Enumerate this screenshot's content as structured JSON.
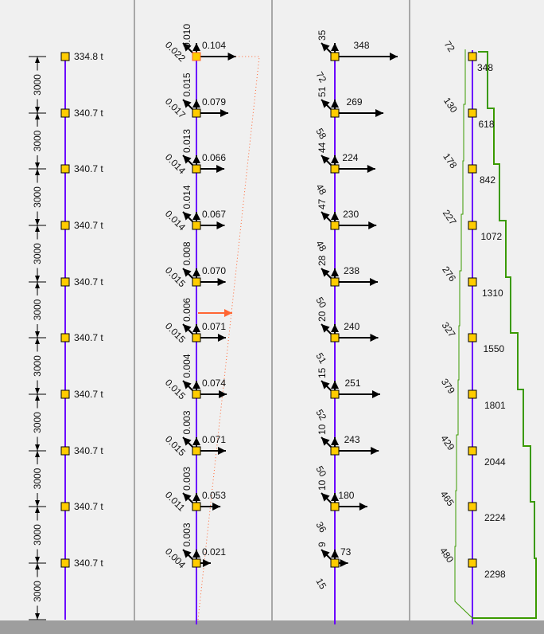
{
  "colors": {
    "column": "#6a00ff",
    "node_fill": "#ffcc00",
    "arrow": "#000000",
    "highlight": "#ff6633",
    "shear_envelope": "#3a9a00",
    "ground": "#9e9e9e",
    "divider": "#a8a8a8"
  },
  "panel_masses": {
    "story_height_labels": [
      "3000",
      "3000",
      "3000",
      "3000",
      "3000",
      "3000",
      "3000",
      "3000",
      "3000",
      "3000"
    ],
    "node_labels": [
      "334.8 t",
      "340.7 t",
      "340.7 t",
      "340.7 t",
      "340.7 t",
      "340.7 t",
      "340.7 t",
      "340.7 t",
      "340.7 t",
      "340.7 t"
    ]
  },
  "panel_displacements": {
    "top_values": [
      "0.104",
      "0.079",
      "0.066",
      "0.067",
      "0.070",
      "0.071",
      "0.074",
      "0.071",
      "0.053",
      "0.021"
    ],
    "diagonal_values": [
      "0.022",
      "0.017",
      "0.014",
      "0.014",
      "0.015",
      "0.015",
      "0.015",
      "0.015",
      "0.011",
      "0.004"
    ],
    "story_values": [
      "0.010",
      "0.015",
      "0.013",
      "0.014",
      "0.008",
      "0.006",
      "0.004",
      "0.003",
      "0.003",
      "0.003"
    ],
    "displacement": [
      0.104,
      0.079,
      0.066,
      0.067,
      0.07,
      0.071,
      0.074,
      0.071,
      0.053,
      0.021
    ]
  },
  "panel_forces": {
    "horizontal_values": [
      "348",
      "269",
      "224",
      "230",
      "238",
      "240",
      "251",
      "243",
      "180",
      "73"
    ],
    "horizontal": [
      348,
      269,
      224,
      230,
      238,
      240,
      251,
      243,
      180,
      73
    ],
    "vertical_values": [
      "35",
      "51",
      "44",
      "47",
      "28",
      "20",
      "15",
      "10",
      "10",
      "9"
    ],
    "diagonal_values": [
      "72",
      "58",
      "48",
      "48",
      "50",
      "51",
      "52",
      "50",
      "36",
      "15"
    ]
  },
  "panel_shear": {
    "left_values": [
      "72",
      "130",
      "178",
      "227",
      "276",
      "327",
      "379",
      "429",
      "465",
      "480"
    ],
    "right_values": [
      "348",
      "618",
      "842",
      "1072",
      "1310",
      "1550",
      "1801",
      "2044",
      "2224",
      "2298"
    ]
  }
}
